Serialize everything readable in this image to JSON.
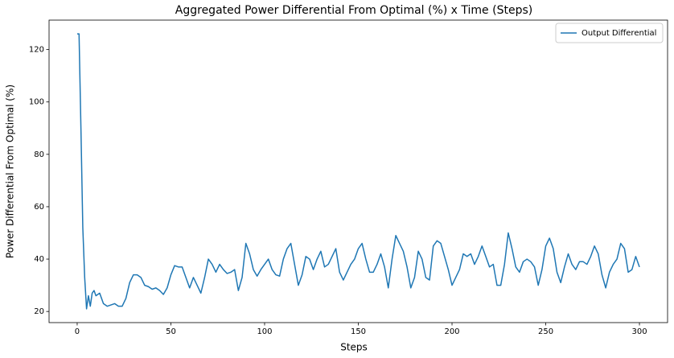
{
  "chart_data": {
    "type": "line",
    "title": "Aggregated Power Differential From Optimal (%) x Time (Steps)",
    "x_label": "Steps",
    "y_label": "Power Differential From Optimal (%)",
    "x": [
      0,
      1,
      2,
      3,
      4,
      5,
      6,
      7,
      8,
      9,
      10,
      12,
      14,
      16,
      18,
      20,
      22,
      24,
      26,
      28,
      30,
      32,
      34,
      36,
      38,
      40,
      42,
      44,
      46,
      48,
      50,
      52,
      54,
      56,
      58,
      60,
      62,
      64,
      66,
      68,
      70,
      72,
      74,
      76,
      78,
      80,
      82,
      84,
      86,
      88,
      90,
      92,
      94,
      96,
      98,
      100,
      102,
      104,
      106,
      108,
      110,
      112,
      114,
      116,
      118,
      120,
      122,
      124,
      126,
      128,
      130,
      132,
      134,
      136,
      138,
      140,
      142,
      144,
      146,
      148,
      150,
      152,
      154,
      156,
      158,
      160,
      162,
      164,
      166,
      168,
      170,
      172,
      174,
      176,
      178,
      180,
      182,
      184,
      186,
      188,
      190,
      192,
      194,
      196,
      198,
      200,
      202,
      204,
      206,
      208,
      210,
      212,
      214,
      216,
      218,
      220,
      222,
      224,
      226,
      228,
      230,
      232,
      234,
      236,
      238,
      240,
      242,
      244,
      246,
      248,
      250,
      252,
      254,
      256,
      258,
      260,
      262,
      264,
      266,
      268,
      270,
      272,
      274,
      276,
      278,
      280,
      282,
      284,
      286,
      288,
      290,
      292,
      294,
      296,
      298,
      300
    ],
    "series": [
      {
        "name": "Output Differential",
        "color": "#1f77b4",
        "values": [
          126,
          126,
          90,
          52,
          33,
          21,
          26,
          22,
          27,
          28,
          26,
          27,
          23,
          22,
          22.5,
          23,
          22,
          22,
          25,
          31,
          34,
          34,
          33,
          30,
          29.5,
          28.5,
          29,
          28,
          26.5,
          29,
          34,
          37.5,
          37,
          37,
          33,
          29,
          33,
          30,
          27,
          33,
          40,
          38,
          35,
          38,
          36,
          34.5,
          35,
          36,
          28,
          33,
          46,
          42,
          36,
          33.5,
          36,
          38,
          40,
          36,
          34,
          33.5,
          40,
          44,
          46,
          38,
          30,
          34,
          41,
          40,
          36,
          40,
          43,
          37,
          38,
          41,
          44,
          35,
          32,
          35,
          38,
          40,
          44,
          46,
          40,
          35,
          35,
          38,
          42,
          37,
          29,
          40,
          49,
          46,
          43,
          37,
          29,
          33,
          43,
          40,
          33,
          32,
          45,
          47,
          46,
          41,
          36,
          30,
          33,
          36,
          42,
          41,
          42,
          38,
          41,
          45,
          41,
          37,
          38,
          30,
          30,
          38,
          50,
          44,
          37,
          35,
          39,
          40,
          39,
          37,
          30,
          36,
          45,
          48,
          44,
          35,
          31,
          37,
          42,
          38,
          36,
          39,
          39,
          38,
          41,
          45,
          42,
          34,
          29,
          35,
          38,
          40,
          46,
          44,
          35,
          36,
          41,
          37
        ]
      }
    ],
    "xlim": [
      -15,
      315
    ],
    "xticks": [
      0,
      50,
      100,
      150,
      200,
      250,
      300
    ],
    "ylim": [
      15.75,
      131.25
    ],
    "yticks": [
      20,
      40,
      60,
      80,
      100,
      120
    ],
    "legend": "upper right",
    "grid": false
  }
}
